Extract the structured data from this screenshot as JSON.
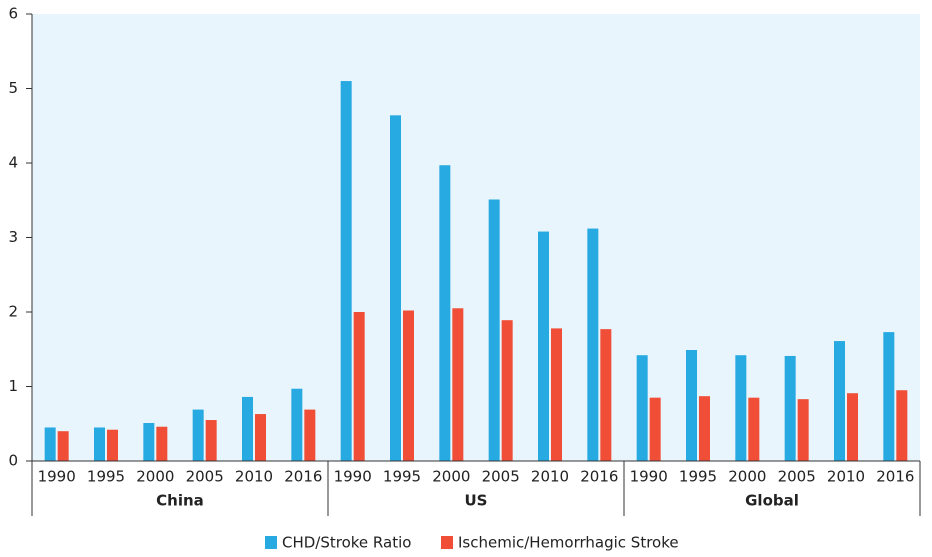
{
  "chart_data": {
    "type": "bar",
    "categories": [
      "1990",
      "1995",
      "2000",
      "2005",
      "2010",
      "2016",
      "1990",
      "1995",
      "2000",
      "2005",
      "2010",
      "2016",
      "1990",
      "1995",
      "2000",
      "2005",
      "2010",
      "2016"
    ],
    "groups": [
      "China",
      "US",
      "Global"
    ],
    "series": [
      {
        "name": "CHD/Stroke Ratio",
        "color": "#27a9e1",
        "values": [
          0.45,
          0.45,
          0.51,
          0.69,
          0.86,
          0.97,
          5.1,
          4.64,
          3.97,
          3.51,
          3.08,
          3.12,
          1.42,
          1.49,
          1.42,
          1.41,
          1.61,
          1.73
        ]
      },
      {
        "name": "Ischemic/Hemorrhagic Stroke",
        "color": "#f04e37",
        "values": [
          0.4,
          0.42,
          0.46,
          0.55,
          0.63,
          0.69,
          2.0,
          2.02,
          2.05,
          1.89,
          1.78,
          1.77,
          0.85,
          0.87,
          0.85,
          0.83,
          0.91,
          0.95
        ]
      }
    ],
    "ylim": [
      0,
      6
    ],
    "yticks": [
      0,
      1,
      2,
      3,
      4,
      5,
      6
    ],
    "grid": false,
    "legend": "bottom"
  }
}
